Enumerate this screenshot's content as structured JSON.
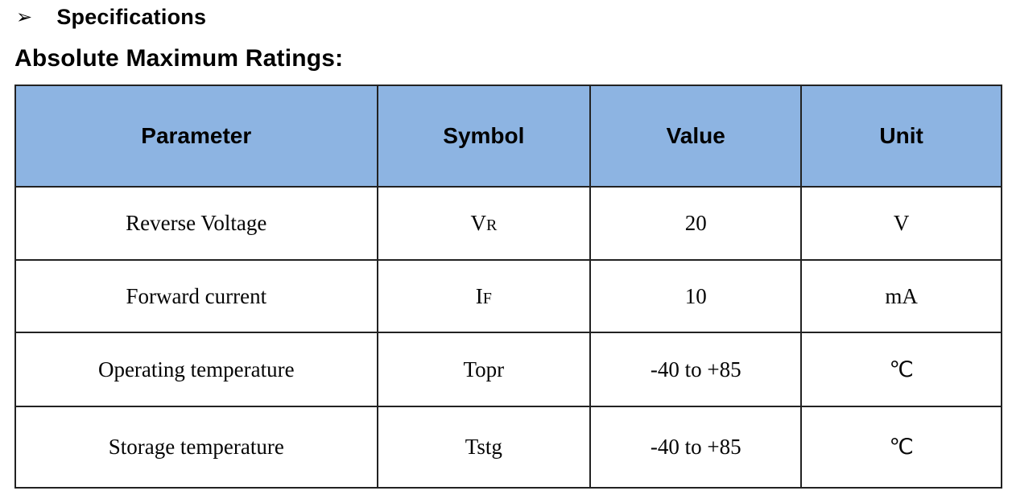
{
  "page": {
    "bullet": "➢",
    "section_title": "Specifications",
    "table_title": "Absolute Maximum Ratings:"
  },
  "colors": {
    "header_bg": "#8DB4E2",
    "border": "#222222",
    "text": "#000000"
  },
  "table": {
    "headers": [
      "Parameter",
      "Symbol",
      "Value",
      "Unit"
    ],
    "rows": [
      {
        "parameter": "Reverse Voltage",
        "symbol_main": "V",
        "symbol_sub": "R",
        "value": "20",
        "unit": "V"
      },
      {
        "parameter": "Forward current",
        "symbol_main": "I",
        "symbol_sub": "F",
        "value": "10",
        "unit": "mA"
      },
      {
        "parameter": "Operating temperature",
        "symbol_main": "Topr",
        "symbol_sub": "",
        "value": "-40 to +85",
        "unit": "℃"
      },
      {
        "parameter": "Storage temperature",
        "symbol_main": "Tstg",
        "symbol_sub": "",
        "value": "-40 to +85",
        "unit": "℃"
      }
    ]
  }
}
